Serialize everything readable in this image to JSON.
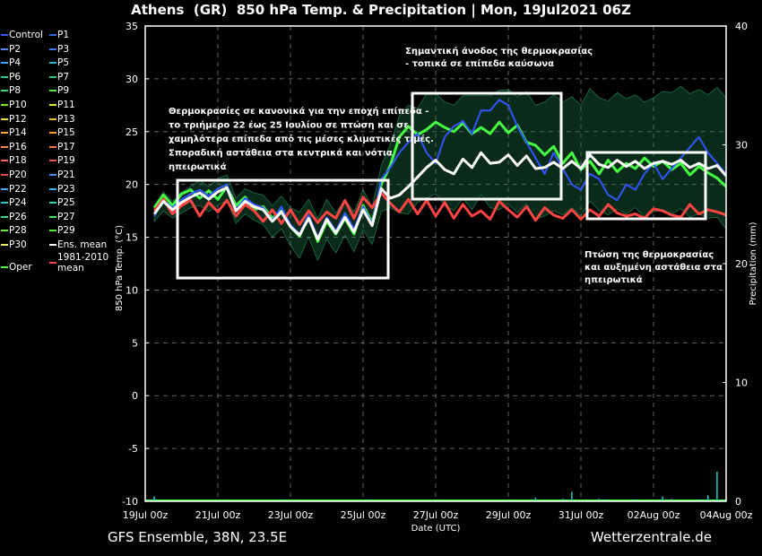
{
  "header": {
    "location": "Athens",
    "country": "(GR)",
    "title": "850 hPa Temp. & Precipitation | Mon, 19Jul2021 06Z"
  },
  "footer": {
    "model": "GFS Ensemble, 38N, 23.5E",
    "site": "Wetterzentrale.de"
  },
  "legend": [
    {
      "label": "Control",
      "color": "#3355ff"
    },
    {
      "label": "P1",
      "color": "#3366ee"
    },
    {
      "label": "P2",
      "color": "#5588ff"
    },
    {
      "label": "P3",
      "color": "#4477ff"
    },
    {
      "label": "P4",
      "color": "#33aaff"
    },
    {
      "label": "P5",
      "color": "#22bbcc"
    },
    {
      "label": "P6",
      "color": "#22cc99"
    },
    {
      "label": "P7",
      "color": "#22cc77"
    },
    {
      "label": "P8",
      "color": "#33dd77"
    },
    {
      "label": "P9",
      "color": "#44ee44"
    },
    {
      "label": "P10",
      "color": "#77ee22"
    },
    {
      "label": "P11",
      "color": "#ddee33"
    },
    {
      "label": "P12",
      "color": "#eedd44"
    },
    {
      "label": "P13",
      "color": "#eebb33"
    },
    {
      "label": "P14",
      "color": "#ffaa33"
    },
    {
      "label": "P15",
      "color": "#ff9933"
    },
    {
      "label": "P16",
      "color": "#ff8844"
    },
    {
      "label": "P17",
      "color": "#ff7744"
    },
    {
      "label": "P18",
      "color": "#ff6655"
    },
    {
      "label": "P19",
      "color": "#ee5544"
    },
    {
      "label": "P20",
      "color": "#ee4444"
    },
    {
      "label": "P21",
      "color": "#4488ff"
    },
    {
      "label": "P22",
      "color": "#55aaff"
    },
    {
      "label": "P23",
      "color": "#33bbee"
    },
    {
      "label": "P24",
      "color": "#22cccc"
    },
    {
      "label": "P25",
      "color": "#22ddaa"
    },
    {
      "label": "P26",
      "color": "#33dd88"
    },
    {
      "label": "P27",
      "color": "#33ee66"
    },
    {
      "label": "P28",
      "color": "#77ee44"
    },
    {
      "label": "P29",
      "color": "#55ee33"
    },
    {
      "label": "P30",
      "color": "#eeee55"
    },
    {
      "label": "Ens. mean",
      "color": "#ffffff"
    },
    {
      "label": "Oper",
      "color": "#44ff44"
    },
    {
      "label": "1981-2010\nmean",
      "color": "#ff4444"
    }
  ],
  "annotations": {
    "note1": [
      "Θερμοκρασίες σε κανονικά για την εποχή επίπεδα -",
      "το τριήμερο 22 έως 25 Ιουλίου σε πτώση και σε",
      "χαμηλότερα επίπεδα από τις μέσες κλιματικές τιμές.",
      "Σποραδική αστάθεια στα κεντρικά και νότια",
      "ηπειρωτικά"
    ],
    "note2": [
      "Σημαντική άνοδος της θερμοκρασίας",
      "- τοπικά σε επίπεδα καύσωνα"
    ],
    "note3": [
      "Πτώση της θερμοκρασίας",
      "και αυξημένη αστάθεια στα",
      "ηπειρωτικά"
    ]
  },
  "chart_data": {
    "type": "line",
    "xlabel": "Date (UTC)",
    "ylabel": "850 hPa Temp. (°C)",
    "y2label": "Precipitation (mm)",
    "xlim": [
      0,
      384
    ],
    "ylim": [
      -10,
      35
    ],
    "y2lim": [
      0,
      40
    ],
    "xticks": [
      {
        "hour": 0,
        "label": "19Jul 00z"
      },
      {
        "hour": 48,
        "label": "21Jul 00z"
      },
      {
        "hour": 96,
        "label": "23Jul 00z"
      },
      {
        "hour": 144,
        "label": "25Jul 00z"
      },
      {
        "hour": 192,
        "label": "27Jul 00z"
      },
      {
        "hour": 240,
        "label": "29Jul 00z"
      },
      {
        "hour": 288,
        "label": "31Jul 00z"
      },
      {
        "hour": 336,
        "label": "02Aug 00z"
      },
      {
        "hour": 384,
        "label": "04Aug 00z"
      }
    ],
    "yticks": [
      -10,
      -5,
      0,
      5,
      10,
      15,
      20,
      25,
      30,
      35
    ],
    "y2ticks": [
      0,
      10,
      20,
      30,
      40
    ],
    "grid": true,
    "x_hours": [
      6,
      12,
      18,
      24,
      30,
      36,
      42,
      48,
      54,
      60,
      66,
      72,
      78,
      84,
      90,
      96,
      102,
      108,
      114,
      120,
      126,
      132,
      138,
      144,
      150,
      156,
      162,
      168,
      174,
      180,
      186,
      192,
      198,
      204,
      210,
      216,
      222,
      228,
      234,
      240,
      246,
      252,
      258,
      264,
      270,
      276,
      282,
      288,
      294,
      300,
      306,
      312,
      318,
      324,
      330,
      336,
      342,
      348,
      354,
      360,
      366,
      372,
      378,
      384
    ],
    "series": [
      {
        "name": "Ens. mean",
        "color": "#ffffff",
        "width": 3,
        "values": [
          17.2,
          18.4,
          17.6,
          18.3,
          18.8,
          19.2,
          18.6,
          19.3,
          19.7,
          17.5,
          18.4,
          17.9,
          17.6,
          16.5,
          17.4,
          16.0,
          15.2,
          16.8,
          14.8,
          16.7,
          15.4,
          16.9,
          15.5,
          17.6,
          16.1,
          19.6,
          18.7,
          19.0,
          19.8,
          20.7,
          21.6,
          22.3,
          21.4,
          21.0,
          22.4,
          21.6,
          23.0,
          22.0,
          22.1,
          22.8,
          21.8,
          22.7,
          21.5,
          21.6,
          22.1,
          21.5,
          22.2,
          21.5,
          22.8,
          21.9,
          21.6,
          22.3,
          21.7,
          22.2,
          21.5,
          22.0,
          22.2,
          21.9,
          22.3,
          21.6,
          22.0,
          21.5,
          21.8,
          20.8
        ]
      },
      {
        "name": "1981-2010\nmean",
        "color": "#ff4444",
        "width": 3,
        "values": [
          17.5,
          18.6,
          17.2,
          18.0,
          18.5,
          17.0,
          18.3,
          17.4,
          18.5,
          17.0,
          18.1,
          17.5,
          16.5,
          17.6,
          16.3,
          17.6,
          16.2,
          17.5,
          16.4,
          17.4,
          16.8,
          18.5,
          16.8,
          18.8,
          17.8,
          19.2,
          18.2,
          17.4,
          18.6,
          17.2,
          18.5,
          17.0,
          18.3,
          16.8,
          18.1,
          17.0,
          17.5,
          16.7,
          18.4,
          17.6,
          16.9,
          17.9,
          16.6,
          17.8,
          17.1,
          16.8,
          17.6,
          16.7,
          17.6,
          17.0,
          18.1,
          17.3,
          17.0,
          17.2,
          16.8,
          17.7,
          17.5,
          17.1,
          16.9,
          18.1,
          17.2,
          17.6,
          17.4,
          17.1
        ]
      },
      {
        "name": "Control",
        "color": "#3355ff",
        "width": 2,
        "values": [
          17.0,
          18.5,
          17.8,
          18.6,
          19.1,
          19.5,
          18.9,
          19.6,
          20.0,
          17.6,
          18.7,
          18.1,
          17.8,
          16.6,
          17.9,
          16.2,
          15.3,
          17.1,
          15.0,
          16.9,
          15.6,
          17.3,
          15.8,
          17.9,
          16.3,
          20.5,
          21.6,
          23.0,
          24.0,
          24.8,
          23.0,
          22.0,
          24.5,
          25.5,
          26.0,
          24.8,
          27.0,
          27.0,
          28.0,
          27.5,
          25.5,
          24.0,
          22.5,
          21.0,
          23.0,
          21.5,
          20.0,
          19.5,
          21.0,
          20.5,
          19.0,
          18.5,
          20.0,
          19.5,
          21.0,
          22.0,
          20.5,
          21.5,
          22.5,
          23.5,
          24.5,
          23.0,
          22.0,
          21.0
        ]
      },
      {
        "name": "Oper",
        "color": "#44ff44",
        "width": 3,
        "values": [
          17.8,
          19.0,
          18.0,
          19.1,
          19.5,
          18.7,
          19.4,
          18.6,
          19.8,
          18.0,
          18.8,
          17.6,
          17.9,
          16.8,
          17.5,
          16.0,
          15.1,
          17.0,
          14.6,
          16.5,
          15.3,
          16.8,
          15.3,
          18.0,
          16.4,
          20.0,
          21.8,
          24.5,
          25.5,
          24.7,
          25.2,
          25.9,
          25.4,
          25.0,
          25.8,
          24.8,
          25.4,
          24.8,
          25.9,
          24.9,
          25.6,
          24.0,
          23.7,
          22.8,
          23.6,
          22.0,
          23.0,
          21.4,
          22.2,
          21.0,
          22.3,
          21.2,
          22.0,
          21.5,
          22.5,
          21.7,
          22.2,
          21.4,
          22.0,
          20.9,
          21.7,
          21.1,
          20.6,
          19.8
        ]
      }
    ],
    "member_spread": {
      "low": [
        16.5,
        17.5,
        16.8,
        17.3,
        17.8,
        18.0,
        17.4,
        18.0,
        18.5,
        16.3,
        17.2,
        16.6,
        16.2,
        15.0,
        15.8,
        14.2,
        13.0,
        15.0,
        12.8,
        14.8,
        13.5,
        15.2,
        13.6,
        15.7,
        14.3,
        17.4,
        17.8,
        17.3,
        17.2,
        18.3,
        18.7,
        19.1,
        18.0,
        17.5,
        18.7,
        17.6,
        19.0,
        17.8,
        17.6,
        18.2,
        17.3,
        18.2,
        16.7,
        17.0,
        17.5,
        17.1,
        17.8,
        17.0,
        18.4,
        17.5,
        17.1,
        17.7,
        17.2,
        17.8,
        16.9,
        17.4,
        17.6,
        17.2,
        17.7,
        16.9,
        17.2,
        16.8,
        16.9,
        15.8
      ],
      "high": [
        18.0,
        19.3,
        18.4,
        19.3,
        19.8,
        20.4,
        19.8,
        20.6,
        20.9,
        18.7,
        19.6,
        19.2,
        19.0,
        18.0,
        18.9,
        17.8,
        17.4,
        18.6,
        16.8,
        18.6,
        17.3,
        18.6,
        17.4,
        19.5,
        17.9,
        21.8,
        23.8,
        26.5,
        27.5,
        27.2,
        28.6,
        28.6,
        27.8,
        27.5,
        28.4,
        28.4,
        28.4,
        28.4,
        28.9,
        29.0,
        28.3,
        28.8,
        27.5,
        27.8,
        28.5,
        27.8,
        28.3,
        27.5,
        29.1,
        28.2,
        27.9,
        28.7,
        28.1,
        28.5,
        27.8,
        28.2,
        28.8,
        28.7,
        29.3,
        28.6,
        29.0,
        28.5,
        29.2,
        28.2
      ]
    },
    "precipitation": {
      "hours": [
        6,
        90,
        150,
        258,
        276,
        282,
        300,
        306,
        324,
        342,
        348,
        366,
        372,
        378,
        384
      ],
      "values": [
        0.4,
        0.1,
        0.1,
        0.3,
        0.2,
        0.8,
        0.2,
        0.1,
        0.1,
        0.4,
        0.2,
        0.1,
        0.5,
        2.5,
        0.3
      ]
    }
  }
}
